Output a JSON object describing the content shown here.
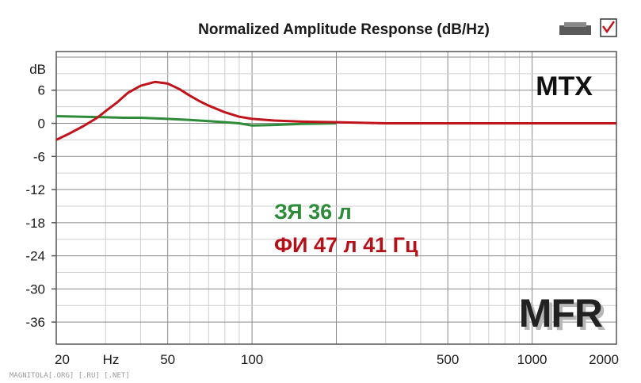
{
  "chart_data": {
    "type": "line",
    "title": "Normalized Amplitude Response (dB/Hz)",
    "x_scale": "log",
    "xlim": [
      20,
      2000
    ],
    "ylim": [
      -40,
      13
    ],
    "y_unit_label": "dB",
    "x_unit_label": "Hz",
    "y_ticks": [
      6,
      0,
      -6,
      -12,
      -18,
      -24,
      -30,
      -36
    ],
    "x_tick_labels": [
      {
        "value": 20,
        "label": "20"
      },
      {
        "value": 50,
        "label": "50"
      },
      {
        "value": 100,
        "label": "100"
      },
      {
        "value": 500,
        "label": "500"
      },
      {
        "value": 1000,
        "label": "1000"
      },
      {
        "value": 2000,
        "label": "2000"
      }
    ],
    "grid": true,
    "series": [
      {
        "name": "ЗЯ 36 л",
        "color": "#2e8b3a",
        "x": [
          20,
          25,
          30,
          35,
          40,
          45,
          50,
          55,
          60,
          70,
          80,
          90,
          100,
          120,
          150,
          200
        ],
        "y": [
          1.3,
          1.2,
          1.1,
          1.0,
          1.0,
          0.9,
          0.8,
          0.7,
          0.6,
          0.4,
          0.2,
          0.0,
          -0.4,
          -0.3,
          -0.1,
          0.0
        ]
      },
      {
        "name": "ФИ 47 л 41 Гц",
        "color": "#c0141c",
        "x": [
          20,
          22,
          25,
          28,
          30,
          33,
          36,
          40,
          45,
          50,
          55,
          60,
          65,
          70,
          80,
          90,
          100,
          120,
          150,
          200,
          300,
          500,
          1000,
          2000
        ],
        "y": [
          -3.0,
          -2.0,
          -0.5,
          1.0,
          2.2,
          3.8,
          5.5,
          6.8,
          7.5,
          7.2,
          6.2,
          5.0,
          4.0,
          3.2,
          2.0,
          1.2,
          0.8,
          0.5,
          0.3,
          0.2,
          0.0,
          0.0,
          0.0,
          0.0
        ]
      }
    ],
    "annotations": [
      {
        "text": "ЗЯ 36 л",
        "color": "#2e8b3a"
      },
      {
        "text": "ФИ 47 л 41 Гц",
        "color": "#b3121a"
      }
    ]
  },
  "labels": {
    "brand": "MTX",
    "mfr": "MFR",
    "watermark": "MAGNITOLA[.ORG] [.RU] [.NET]"
  },
  "colors": {
    "plot_border": "#555555",
    "grid_minor": "#cfcfcf",
    "grid_major": "#8a8a8a"
  }
}
